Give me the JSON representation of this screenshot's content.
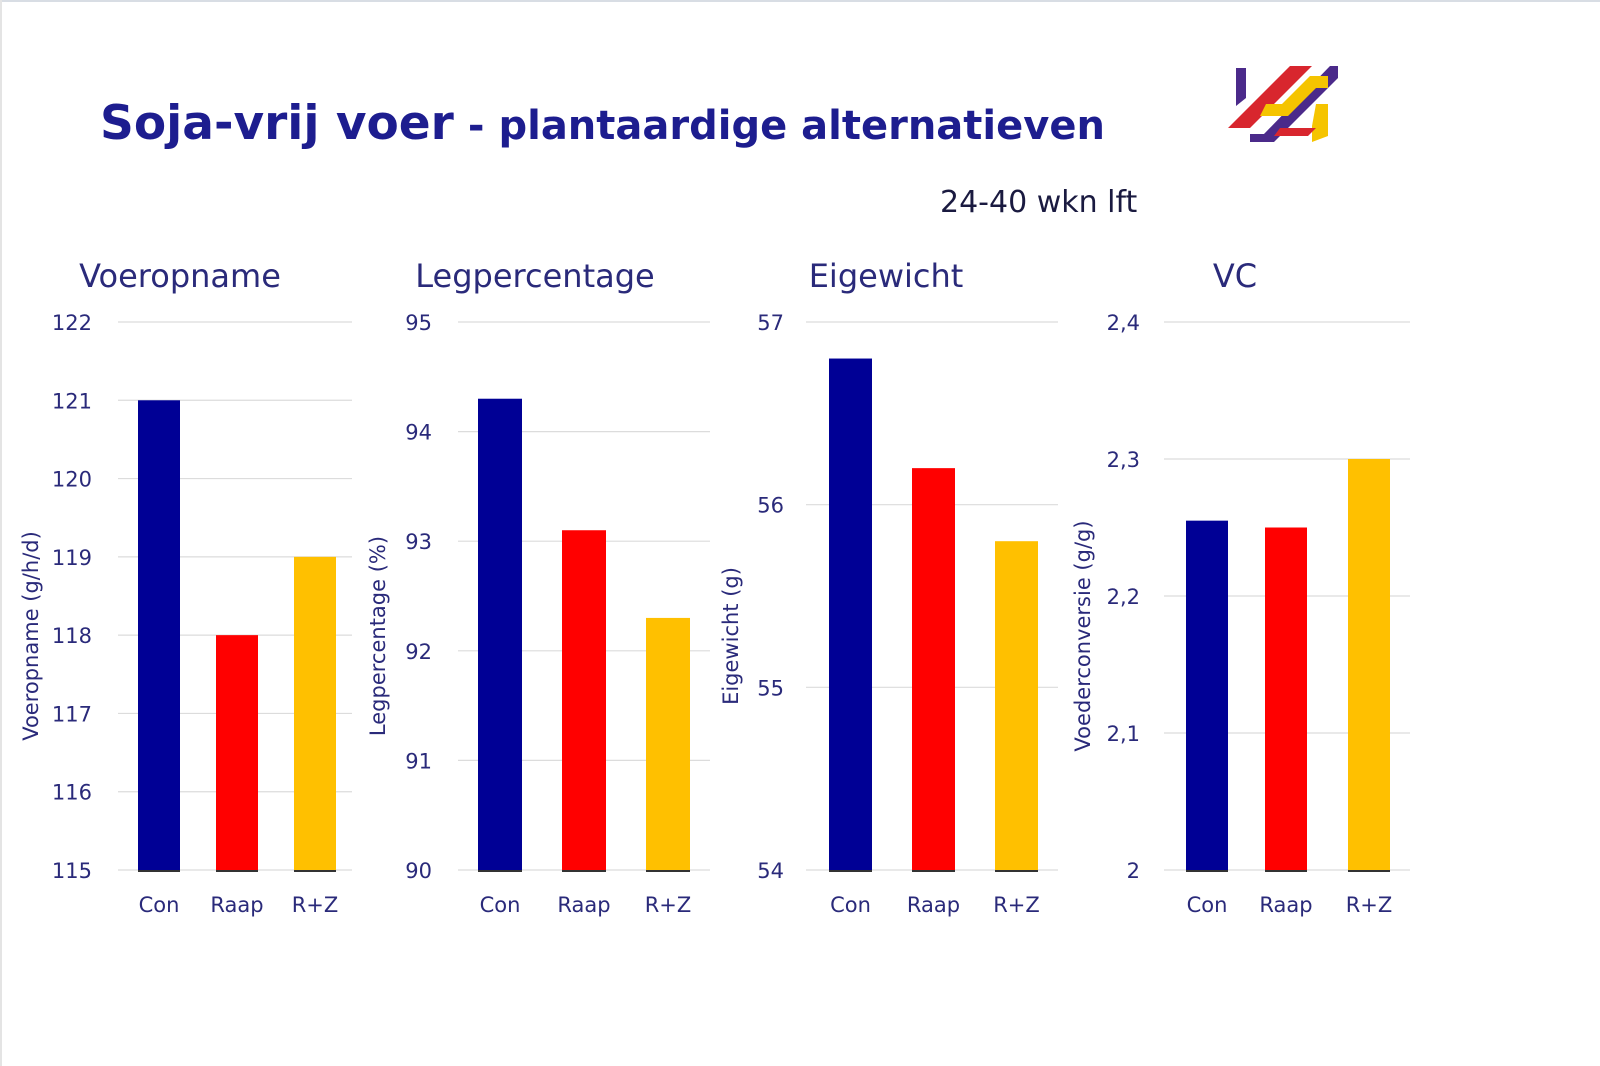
{
  "slide": {
    "title_main": "Soja-vrij voer",
    "title_separator": "-",
    "title_sub": "plantaardige alternatieven",
    "period": "24-40 wkn lft"
  },
  "colors": {
    "title": "#1d1d8f",
    "axis_text": "#2a2a7a",
    "grid": "#dcdcdc",
    "con": "#000095",
    "raap": "#ff0000",
    "rz": "#ffc000"
  },
  "chart_data": [
    {
      "type": "bar",
      "title": "Voeropname",
      "ylabel": "Voeropname (g/h/d)",
      "xlabel": "",
      "categories": [
        "Con",
        "Raap",
        "R+Z"
      ],
      "values": [
        121,
        118,
        119
      ],
      "ylim": [
        115,
        122
      ],
      "yticks": [
        115,
        116,
        117,
        118,
        119,
        120,
        121,
        122
      ],
      "ytick_labels": [
        "115",
        "116",
        "117",
        "118",
        "119",
        "120",
        "121",
        "122"
      ],
      "grid": true
    },
    {
      "type": "bar",
      "title": "Legpercentage",
      "ylabel": "Legpercentage (%)",
      "xlabel": "",
      "categories": [
        "Con",
        "Raap",
        "R+Z"
      ],
      "values": [
        94.3,
        93.1,
        92.3
      ],
      "ylim": [
        90,
        95
      ],
      "yticks": [
        90,
        91,
        92,
        93,
        94,
        95
      ],
      "ytick_labels": [
        "90",
        "91",
        "92",
        "93",
        "94",
        "95"
      ],
      "grid": true
    },
    {
      "type": "bar",
      "title": "Eigewicht",
      "ylabel": "Eigewicht (g)",
      "xlabel": "",
      "categories": [
        "Con",
        "Raap",
        "R+Z"
      ],
      "values": [
        56.8,
        56.2,
        55.8
      ],
      "ylim": [
        54,
        57
      ],
      "yticks": [
        54,
        55,
        56,
        57
      ],
      "ytick_labels": [
        "54",
        "55",
        "56",
        "57"
      ],
      "grid": true
    },
    {
      "type": "bar",
      "title": "VC",
      "ylabel": "Voederconversie (g/g)",
      "xlabel": "",
      "categories": [
        "Con",
        "Raap",
        "R+Z"
      ],
      "values": [
        2.255,
        2.25,
        2.3
      ],
      "ylim": [
        2.0,
        2.4
      ],
      "yticks": [
        2.0,
        2.1,
        2.2,
        2.3,
        2.4
      ],
      "ytick_labels": [
        "2",
        "2,1",
        "2,2",
        "2,3",
        "2,4"
      ],
      "grid": true
    }
  ]
}
